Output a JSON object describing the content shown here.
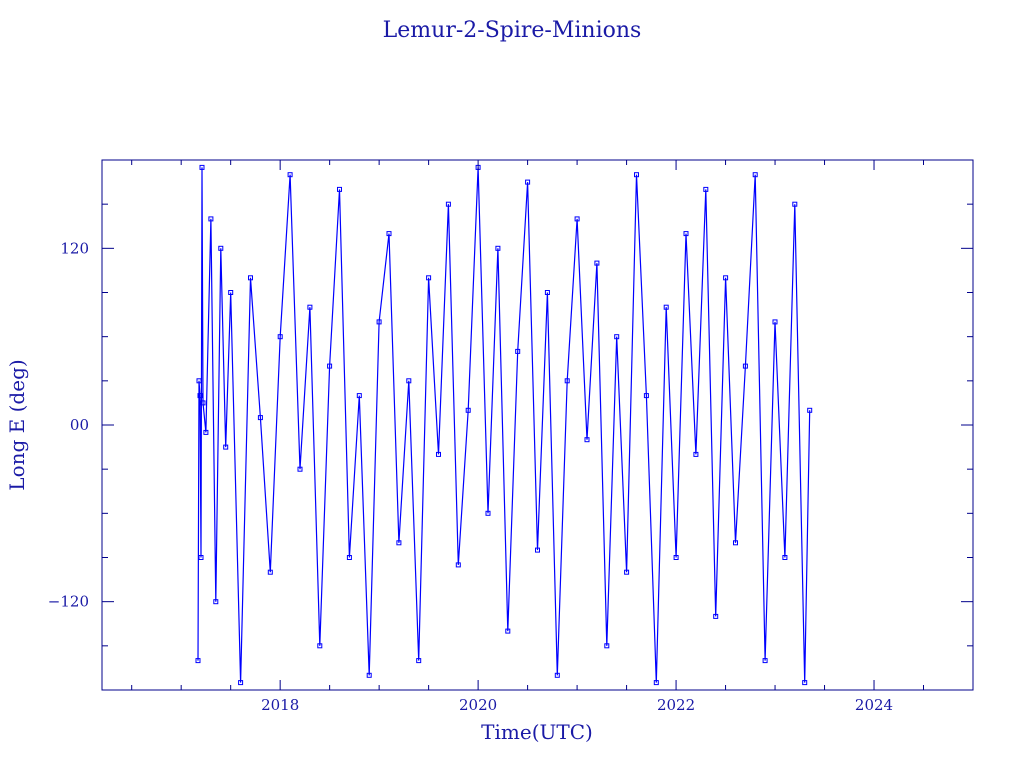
{
  "chart_data": {
    "type": "line",
    "title": "Lemur-2-Spire-Minions",
    "xlabel": "Time(UTC)",
    "ylabel": "Long E (deg)",
    "xlim": [
      2016.2,
      2025.0
    ],
    "ylim": [
      -180,
      180
    ],
    "x_ticks": [
      2018,
      2020,
      2022,
      2024
    ],
    "x_tick_labels": [
      "2018",
      "2020",
      "2022",
      "2024"
    ],
    "y_ticks": [
      -120,
      0,
      120
    ],
    "y_tick_labels": [
      "−120",
      "00",
      "120"
    ],
    "grid": false,
    "colors": {
      "series": "#0000ff",
      "axes": "#00008b",
      "text": "#1a1aa6"
    },
    "series": [
      {
        "marker": "square",
        "x": [
          2017.17,
          2017.18,
          2017.19,
          2017.2,
          2017.21,
          2017.22,
          2017.25,
          2017.3,
          2017.35,
          2017.4,
          2017.45,
          2017.5,
          2017.6,
          2017.7,
          2017.8,
          2017.9,
          2018.0,
          2018.1,
          2018.2,
          2018.3,
          2018.4,
          2018.5,
          2018.6,
          2018.7,
          2018.8,
          2018.9,
          2019.0,
          2019.1,
          2019.2,
          2019.3,
          2019.4,
          2019.5,
          2019.6,
          2019.7,
          2019.8,
          2019.9,
          2020.0,
          2020.1,
          2020.2,
          2020.3,
          2020.4,
          2020.5,
          2020.6,
          2020.7,
          2020.8,
          2020.9,
          2021.0,
          2021.1,
          2021.2,
          2021.3,
          2021.4,
          2021.5,
          2021.6,
          2021.7,
          2021.8,
          2021.9,
          2022.0,
          2022.1,
          2022.2,
          2022.3,
          2022.4,
          2022.5,
          2022.6,
          2022.7,
          2022.8,
          2022.9,
          2023.0,
          2023.1,
          2023.2,
          2023.3,
          2023.35
        ],
        "y": [
          -160,
          30,
          20,
          -90,
          175,
          15,
          -5,
          140,
          -120,
          120,
          -15,
          90,
          -175,
          100,
          5,
          -100,
          60,
          170,
          -30,
          80,
          -150,
          40,
          160,
          -90,
          20,
          -170,
          70,
          130,
          -80,
          30,
          -160,
          100,
          -20,
          150,
          -95,
          10,
          175,
          -60,
          120,
          -140,
          50,
          165,
          -85,
          90,
          -170,
          30,
          140,
          -10,
          110,
          -150,
          60,
          -100,
          170,
          20,
          -175,
          80,
          -90,
          130,
          -20,
          160,
          -130,
          100,
          -80,
          40,
          170,
          -160,
          70,
          -90,
          150,
          -175,
          10
        ]
      }
    ]
  }
}
